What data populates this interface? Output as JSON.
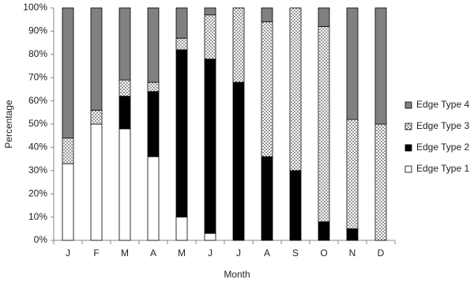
{
  "chart_data": {
    "type": "stacked_bar",
    "categories": [
      "J",
      "F",
      "M",
      "A",
      "M",
      "J",
      "J",
      "A",
      "S",
      "O",
      "N",
      "D"
    ],
    "x_label": "Month",
    "y_label": "Percentage",
    "series": [
      {
        "name": "Edge Type 1",
        "color": "#ffffff",
        "values": [
          33,
          50,
          48,
          36,
          10,
          3,
          0,
          0,
          0,
          0,
          0,
          0
        ]
      },
      {
        "name": "Edge Type 2",
        "color": "#000000",
        "values": [
          0,
          0,
          14,
          28,
          72,
          75,
          68,
          36,
          30,
          8,
          5,
          0
        ]
      },
      {
        "name": "Edge Type 3",
        "color": "#ffffff",
        "pattern": "dots",
        "values": [
          11,
          6,
          7,
          4,
          5,
          19,
          32,
          58,
          70,
          84,
          47,
          50
        ]
      },
      {
        "name": "Edge Type 4",
        "color": "#808080",
        "values": [
          56,
          44,
          31,
          32,
          13,
          3,
          0,
          6,
          0,
          8,
          48,
          50
        ]
      }
    ],
    "ylim": [
      0,
      100
    ],
    "yticks": [
      {
        "value": 0,
        "label": "0%"
      },
      {
        "value": 10,
        "label": "10%"
      },
      {
        "value": 20,
        "label": "20%"
      },
      {
        "value": 30,
        "label": "30%"
      },
      {
        "value": 40,
        "label": "40%"
      },
      {
        "value": 50,
        "label": "50%"
      },
      {
        "value": 60,
        "label": "60%"
      },
      {
        "value": 70,
        "label": "70%"
      },
      {
        "value": 80,
        "label": "80%"
      },
      {
        "value": 90,
        "label": "90%"
      },
      {
        "value": 100,
        "label": "100%"
      }
    ],
    "legend": "right",
    "grid": false
  }
}
